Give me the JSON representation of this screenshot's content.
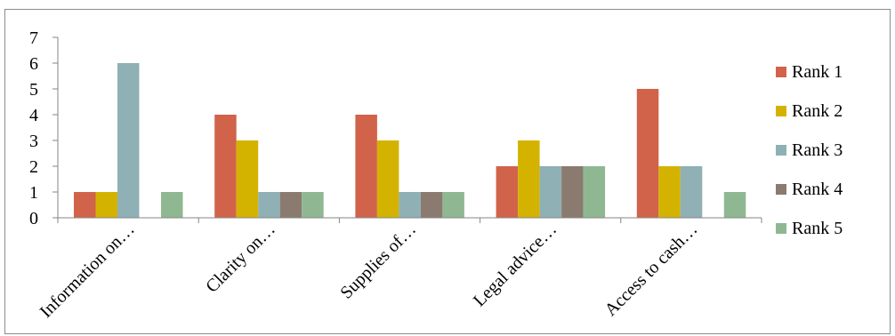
{
  "chart_data": {
    "type": "bar",
    "title": "",
    "xlabel": "",
    "ylabel": "",
    "ylim": [
      0,
      7
    ],
    "yticks": [
      0,
      1,
      2,
      3,
      4,
      5,
      6,
      7
    ],
    "grid": false,
    "legend_position": "right",
    "categories": [
      "Information on…",
      "Clarity on…",
      "Supplies of…",
      "Legal advice…",
      "Access to cash…"
    ],
    "series": [
      {
        "name": "Rank 1",
        "color": "#d1634b",
        "values": [
          1,
          4,
          4,
          2,
          5
        ]
      },
      {
        "name": "Rank 2",
        "color": "#d4b300",
        "values": [
          1,
          3,
          3,
          3,
          2
        ]
      },
      {
        "name": "Rank 3",
        "color": "#8fb0b4",
        "values": [
          6,
          1,
          1,
          2,
          2
        ]
      },
      {
        "name": "Rank 4",
        "color": "#8b7a6f",
        "values": [
          0,
          1,
          1,
          2,
          0
        ]
      },
      {
        "name": "Rank 5",
        "color": "#8fb892",
        "values": [
          1,
          1,
          1,
          2,
          1
        ]
      }
    ]
  }
}
